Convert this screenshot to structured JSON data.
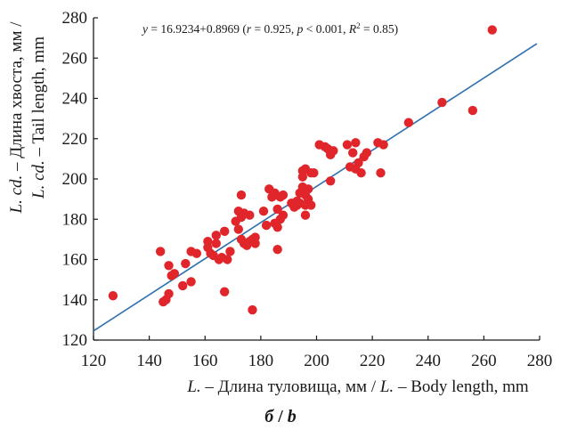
{
  "chart_data": {
    "type": "scatter",
    "title": "",
    "equation_label": {
      "prefix": "y",
      "text": " = 16.9234+0.8969 (",
      "r": "r",
      "r_text": " = 0.925, ",
      "p": "p",
      "p_text": " < 0.001, ",
      "R": "R",
      "sup": "2",
      "tail": " = 0.85)"
    },
    "xlabel_italic": "L.",
    "xlabel_text": " – Длина туловища, мм / ",
    "xlabel_italic2": "L.",
    "xlabel_text2": " – Body length, mm",
    "ylabel_line1_italic": "L. cd.",
    "ylabel_line1_text": " – Длина хвоста, мм /",
    "ylabel_line2_italic": "L. cd.",
    "ylabel_line2_text": " – Tail length, mm",
    "panel_label_ru": "б",
    "panel_sep": " / ",
    "panel_label_en": "b",
    "xlim": [
      120,
      280
    ],
    "ylim": [
      120,
      280
    ],
    "x_ticks": [
      120,
      140,
      160,
      180,
      200,
      220,
      240,
      260,
      280
    ],
    "y_ticks": [
      120,
      140,
      160,
      180,
      200,
      220,
      240,
      260,
      280
    ],
    "grid": false,
    "point_color": "#e0262b",
    "line_color": "#2e6fb0",
    "regression": {
      "intercept": 16.9234,
      "slope": 0.8969,
      "x_range": [
        120,
        279
      ]
    },
    "points": [
      [
        127,
        142
      ],
      [
        144,
        164
      ],
      [
        145,
        139
      ],
      [
        146,
        140
      ],
      [
        147,
        143
      ],
      [
        147,
        157
      ],
      [
        148,
        152
      ],
      [
        149,
        153
      ],
      [
        152,
        147
      ],
      [
        153,
        158
      ],
      [
        155,
        164
      ],
      [
        155,
        149
      ],
      [
        157,
        163
      ],
      [
        161,
        166
      ],
      [
        161,
        169
      ],
      [
        162,
        163
      ],
      [
        163,
        162
      ],
      [
        164,
        172
      ],
      [
        164,
        168
      ],
      [
        165,
        160
      ],
      [
        166,
        161
      ],
      [
        167,
        174
      ],
      [
        167,
        144
      ],
      [
        168,
        160
      ],
      [
        169,
        164
      ],
      [
        171,
        179
      ],
      [
        172,
        184
      ],
      [
        172,
        175
      ],
      [
        173,
        181
      ],
      [
        173,
        192
      ],
      [
        173,
        170
      ],
      [
        174,
        183
      ],
      [
        174,
        168
      ],
      [
        175,
        167
      ],
      [
        176,
        182
      ],
      [
        176,
        169
      ],
      [
        177,
        135
      ],
      [
        177,
        170
      ],
      [
        178,
        168
      ],
      [
        178,
        171
      ],
      [
        181,
        184
      ],
      [
        182,
        177
      ],
      [
        183,
        195
      ],
      [
        184,
        191
      ],
      [
        185,
        193
      ],
      [
        185,
        178
      ],
      [
        186,
        176
      ],
      [
        186,
        185
      ],
      [
        186,
        165
      ],
      [
        187,
        191
      ],
      [
        187,
        180
      ],
      [
        188,
        192
      ],
      [
        188,
        182
      ],
      [
        191,
        188
      ],
      [
        192,
        186
      ],
      [
        193,
        187
      ],
      [
        193,
        189
      ],
      [
        194,
        188
      ],
      [
        194,
        193
      ],
      [
        195,
        196
      ],
      [
        195,
        201
      ],
      [
        195,
        204
      ],
      [
        196,
        182
      ],
      [
        196,
        187
      ],
      [
        196,
        192
      ],
      [
        196,
        205
      ],
      [
        197,
        190
      ],
      [
        197,
        195
      ],
      [
        198,
        203
      ],
      [
        198,
        187
      ],
      [
        199,
        203
      ],
      [
        201,
        217
      ],
      [
        203,
        216
      ],
      [
        204,
        215
      ],
      [
        205,
        212
      ],
      [
        205,
        199
      ],
      [
        206,
        214
      ],
      [
        211,
        217
      ],
      [
        212,
        206
      ],
      [
        213,
        213
      ],
      [
        214,
        218
      ],
      [
        214,
        205
      ],
      [
        215,
        208
      ],
      [
        216,
        203
      ],
      [
        217,
        211
      ],
      [
        218,
        213
      ],
      [
        222,
        218
      ],
      [
        223,
        203
      ],
      [
        224,
        217
      ],
      [
        233,
        228
      ],
      [
        245,
        238
      ],
      [
        256,
        234
      ],
      [
        263,
        274
      ]
    ]
  }
}
